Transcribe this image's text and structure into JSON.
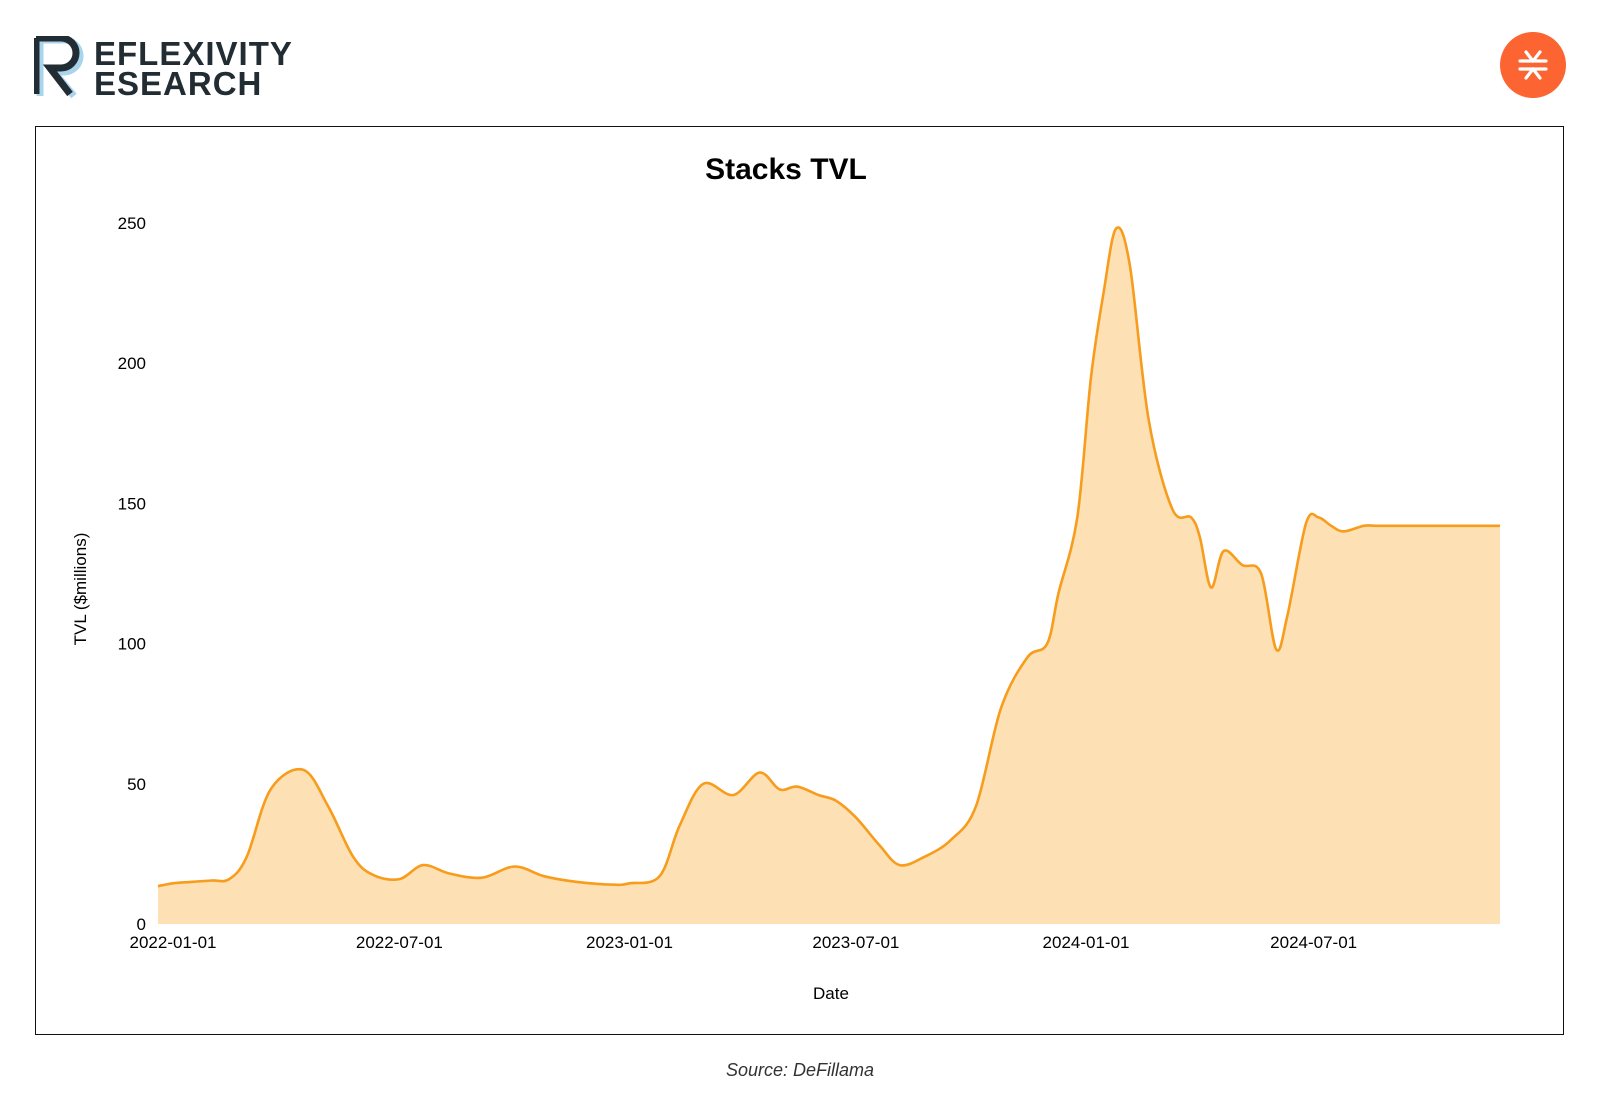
{
  "brand": {
    "line1": "EFLEXIVITY",
    "line2": "ESEARCH",
    "logo_icon": "reflexivity-r-logo-icon",
    "text_color": "#222d33",
    "accent_color": "#a9d4ee"
  },
  "badge": {
    "icon": "stacks-logo-icon",
    "color": "#fc6432"
  },
  "source": "Source: DeFillama",
  "chart_data": {
    "type": "area",
    "title": "Stacks TVL",
    "xlabel": "Date",
    "ylabel": "TVL ($millions)",
    "ylim": [
      0,
      250
    ],
    "yticks": [
      0,
      50,
      100,
      150,
      200,
      250
    ],
    "xticks": [
      "2022-01-01",
      "2022-07-01",
      "2023-01-01",
      "2023-07-01",
      "2024-01-01",
      "2024-07-01"
    ],
    "xlim": [
      "2021-12-20",
      "2024-11-27"
    ],
    "grid": false,
    "line_color": "#f79c1c",
    "fill_color": "#fde0b3",
    "series": [
      {
        "x": [
          "2021-12-20",
          "2022-01-01",
          "2022-01-15",
          "2022-02-01",
          "2022-02-15",
          "2022-03-01",
          "2022-03-20",
          "2022-04-15",
          "2022-05-05",
          "2022-05-25",
          "2022-06-10",
          "2022-07-01",
          "2022-07-20",
          "2022-08-10",
          "2022-09-05",
          "2022-10-01",
          "2022-10-25",
          "2022-11-20",
          "2022-12-20",
          "2023-01-01",
          "2023-01-25",
          "2023-02-10",
          "2023-03-01",
          "2023-03-25",
          "2023-04-15",
          "2023-05-01",
          "2023-05-15",
          "2023-06-01",
          "2023-06-15",
          "2023-07-01",
          "2023-07-20",
          "2023-08-05",
          "2023-08-25",
          "2023-09-15",
          "2023-10-05",
          "2023-10-25",
          "2023-11-15",
          "2023-12-01",
          "2023-12-10",
          "2023-12-25",
          "2024-01-05",
          "2024-01-15",
          "2024-01-25",
          "2024-02-05",
          "2024-02-20",
          "2024-03-10",
          "2024-03-25",
          "2024-04-01",
          "2024-04-10",
          "2024-04-20",
          "2024-05-05",
          "2024-05-20",
          "2024-06-01",
          "2024-06-10",
          "2024-06-25",
          "2024-07-05",
          "2024-07-15",
          "2024-07-25",
          "2024-08-10",
          "2024-08-20",
          "2024-09-05",
          "2024-09-20",
          "2024-10-05",
          "2024-10-25",
          "2024-11-10",
          "2024-11-27"
        ],
        "values": [
          13.5,
          14.5,
          15,
          15.5,
          16,
          24,
          48,
          55,
          42,
          24,
          17.5,
          16,
          21,
          18,
          16.5,
          20.5,
          17,
          15,
          14,
          14.5,
          17,
          35,
          50,
          46,
          54,
          48,
          49,
          46,
          44,
          38,
          28,
          21,
          24,
          30,
          42,
          77,
          95,
          100,
          118,
          145,
          195,
          225,
          248,
          235,
          180,
          148,
          145,
          138,
          120,
          133,
          128,
          125,
          98,
          110,
          143,
          145,
          142,
          140,
          142,
          142,
          142,
          142,
          142,
          142,
          142,
          142
        ]
      }
    ]
  }
}
